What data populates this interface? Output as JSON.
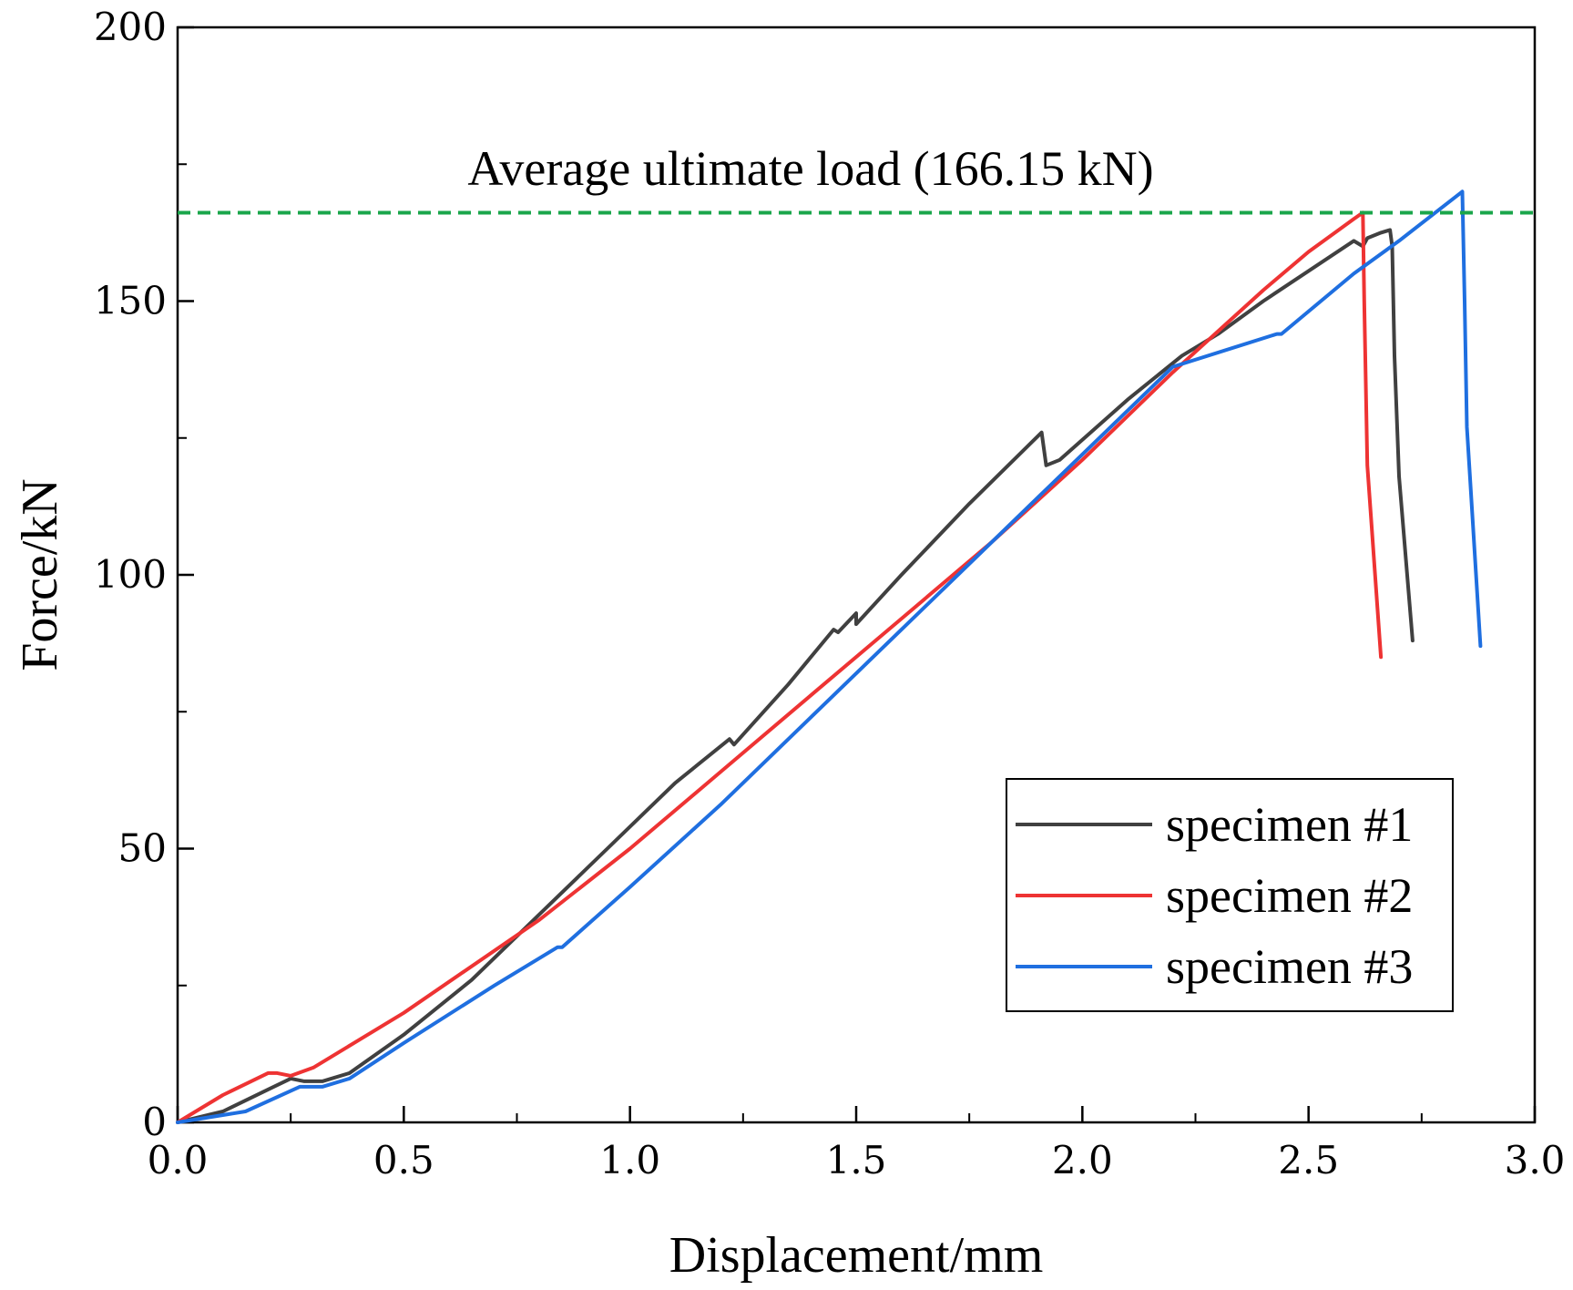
{
  "chart_data": {
    "type": "line",
    "title": "",
    "xlabel": "Displacement/mm",
    "ylabel": "Force/kN",
    "xlim": [
      0,
      3.0
    ],
    "ylim": [
      0,
      200
    ],
    "xticks": [
      0.0,
      0.5,
      1.0,
      1.5,
      2.0,
      2.5,
      3.0
    ],
    "xtick_labels": [
      "0.0",
      "0.5",
      "1.0",
      "1.5",
      "2.0",
      "2.5",
      "3.0"
    ],
    "yticks": [
      0,
      50,
      100,
      150,
      200
    ],
    "ytick_labels": [
      "0",
      "50",
      "100",
      "150",
      "200"
    ],
    "grid": false,
    "legend_position": "bottom-right",
    "annotation": {
      "text": "Average ultimate load (166.15 kN)",
      "value": 166.15,
      "color": "#1aa64b"
    },
    "series": [
      {
        "name": "specimen #1",
        "color": "#404040",
        "x": [
          0,
          0.1,
          0.2,
          0.25,
          0.28,
          0.32,
          0.38,
          0.5,
          0.65,
          0.8,
          0.95,
          1.1,
          1.22,
          1.23,
          1.35,
          1.45,
          1.46,
          1.5,
          1.5,
          1.6,
          1.75,
          1.91,
          1.92,
          1.95,
          2.1,
          2.22,
          2.3,
          2.4,
          2.5,
          2.6,
          2.62,
          2.63,
          2.66,
          2.68,
          2.685,
          2.69,
          2.7,
          2.73
        ],
        "y": [
          0,
          2,
          6,
          8,
          7.5,
          7.5,
          9,
          16,
          26,
          38,
          50,
          62,
          70,
          69,
          80,
          90,
          89.5,
          93,
          91,
          100,
          113,
          126,
          120,
          121,
          132,
          140,
          144,
          150,
          155.5,
          161,
          160,
          161.5,
          162.5,
          163,
          160,
          140,
          118,
          88
        ]
      },
      {
        "name": "specimen #2",
        "color": "#ee3333",
        "x": [
          0,
          0.1,
          0.2,
          0.22,
          0.25,
          0.3,
          0.5,
          0.8,
          1.0,
          1.2,
          1.4,
          1.6,
          1.8,
          2.0,
          2.2,
          2.4,
          2.5,
          2.6,
          2.62,
          2.623,
          2.63,
          2.66
        ],
        "y": [
          0,
          5,
          9,
          9,
          8.5,
          10,
          20,
          37,
          50,
          64,
          78,
          92,
          106,
          121,
          137,
          152,
          159,
          165,
          166.15,
          150,
          120,
          85
        ]
      },
      {
        "name": "specimen #3",
        "color": "#1f6fe0",
        "x": [
          0,
          0.15,
          0.27,
          0.32,
          0.38,
          0.5,
          0.7,
          0.84,
          0.85,
          1.0,
          1.2,
          1.4,
          1.6,
          1.8,
          2.0,
          2.2,
          2.43,
          2.44,
          2.6,
          2.7,
          2.84,
          2.845,
          2.85,
          2.88
        ],
        "y": [
          0,
          2,
          6.5,
          6.5,
          8,
          14.5,
          25,
          32,
          32,
          43,
          58,
          74,
          90,
          106,
          122,
          138,
          144,
          144,
          155,
          161,
          170,
          150,
          127,
          87
        ]
      }
    ]
  }
}
